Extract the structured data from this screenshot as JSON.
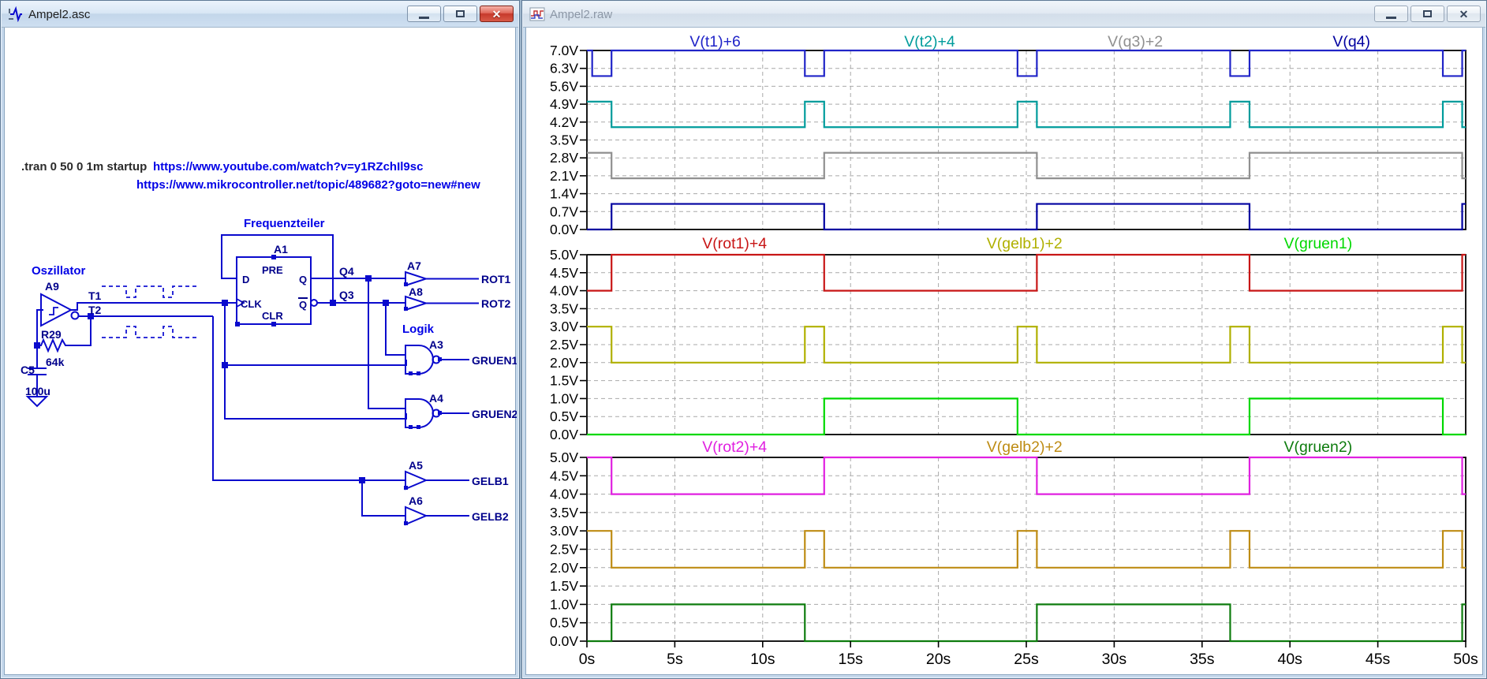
{
  "left_window": {
    "title": "Ampel2.asc",
    "controls": {
      "minimize": "minimize",
      "maximize": "maximize",
      "close": "close"
    },
    "directive": ".tran 0 50 0 1m startup",
    "links": {
      "youtube": "https://www.youtube.com/watch?v=y1RZchIl9sc",
      "forum": "https://www.mikrocontroller.net/topic/489682?goto=new#new"
    },
    "sections": {
      "oscillator": "Oszillator",
      "divider": "Frequenzteiler",
      "logic": "Logik"
    },
    "parts": {
      "a9": "A9",
      "r29": "R29",
      "r29_value": "64k",
      "c5": "C5",
      "c5_value": "100u",
      "a1": "A1",
      "a3": "A3",
      "a4": "A4",
      "a5": "A5",
      "a6": "A6",
      "a7": "A7",
      "a8": "A8"
    },
    "ff_pins": {
      "d": "D",
      "clk": "CLK",
      "pre": "PRE",
      "clr": "CLR",
      "q": "Q",
      "qbar": "Q"
    },
    "nets": {
      "t1": "T1",
      "t2": "T2",
      "q3": "Q3",
      "q4": "Q4",
      "rot1": "ROT1",
      "rot2": "ROT2",
      "gruen1": "GRUEN1",
      "gruen2": "GRUEN2",
      "gelb1": "GELB1",
      "gelb2": "GELB2"
    },
    "wire_color": "#0A0ACD",
    "label_color": "#00008B",
    "comment_color": "#0000E6"
  },
  "right_window": {
    "title": "Ampel2.raw",
    "controls": {
      "minimize": "minimize",
      "maximize": "maximize",
      "close": "close"
    }
  },
  "xtick_labels": [
    "0s",
    "5s",
    "10s",
    "15s",
    "20s",
    "25s",
    "30s",
    "35s",
    "40s",
    "45s",
    "50s"
  ],
  "chart_data": [
    {
      "type": "line",
      "step": true,
      "xlim": [
        0,
        50
      ],
      "ylim": [
        0,
        7
      ],
      "grid": true,
      "ytick_labels": [
        "7.0V",
        "6.3V",
        "5.6V",
        "4.9V",
        "4.2V",
        "3.5V",
        "2.8V",
        "2.1V",
        "1.4V",
        "0.7V",
        "0.0V"
      ],
      "series": [
        {
          "name": "V(t1)+6",
          "color": "#2024C8",
          "offset": 6,
          "label_pos_s": 7.3,
          "points": [
            [
              0,
              1
            ],
            [
              0.3,
              0
            ],
            [
              1.4,
              1
            ],
            [
              12.4,
              0
            ],
            [
              13.5,
              1
            ],
            [
              24.5,
              0
            ],
            [
              25.6,
              1
            ],
            [
              36.6,
              0
            ],
            [
              37.7,
              1
            ],
            [
              48.7,
              0
            ],
            [
              49.8,
              1
            ]
          ]
        },
        {
          "name": "V(t2)+4",
          "color": "#009C9C",
          "offset": 4,
          "label_pos_s": 19.5,
          "points": [
            [
              0,
              1
            ],
            [
              1.4,
              0
            ],
            [
              12.4,
              1
            ],
            [
              13.5,
              0
            ],
            [
              24.5,
              1
            ],
            [
              25.6,
              0
            ],
            [
              36.6,
              1
            ],
            [
              37.7,
              0
            ],
            [
              48.7,
              1
            ],
            [
              49.8,
              0
            ]
          ]
        },
        {
          "name": "V(q3)+2",
          "color": "#909090",
          "offset": 2,
          "label_pos_s": 31.2,
          "points": [
            [
              0,
              1
            ],
            [
              1.4,
              0
            ],
            [
              13.5,
              1
            ],
            [
              25.6,
              0
            ],
            [
              37.7,
              1
            ],
            [
              49.8,
              0
            ]
          ]
        },
        {
          "name": "V(q4)",
          "color": "#0000A0",
          "offset": 0,
          "label_pos_s": 43.5,
          "points": [
            [
              0,
              0
            ],
            [
              1.4,
              1
            ],
            [
              13.5,
              0
            ],
            [
              25.6,
              1
            ],
            [
              37.7,
              0
            ],
            [
              49.8,
              1
            ]
          ]
        }
      ]
    },
    {
      "type": "line",
      "step": true,
      "xlim": [
        0,
        50
      ],
      "ylim": [
        0,
        5
      ],
      "grid": true,
      "ytick_labels": [
        "5.0V",
        "4.5V",
        "4.0V",
        "3.5V",
        "3.0V",
        "2.5V",
        "2.0V",
        "1.5V",
        "1.0V",
        "0.5V",
        "0.0V"
      ],
      "series": [
        {
          "name": "V(rot1)+4",
          "color": "#C81616",
          "offset": 4,
          "label_pos_s": 8.4,
          "points": [
            [
              0,
              0
            ],
            [
              1.4,
              1
            ],
            [
              13.5,
              0
            ],
            [
              25.6,
              1
            ],
            [
              37.7,
              0
            ],
            [
              49.8,
              1
            ]
          ]
        },
        {
          "name": "V(gelb1)+2",
          "color": "#B0B000",
          "offset": 2,
          "label_pos_s": 24.9,
          "points": [
            [
              0,
              1
            ],
            [
              1.4,
              0
            ],
            [
              12.4,
              1
            ],
            [
              13.5,
              0
            ],
            [
              24.5,
              1
            ],
            [
              25.6,
              0
            ],
            [
              36.6,
              1
            ],
            [
              37.7,
              0
            ],
            [
              48.7,
              1
            ],
            [
              49.8,
              0
            ]
          ]
        },
        {
          "name": "V(gruen1)",
          "color": "#00D800",
          "offset": 0,
          "label_pos_s": 41.6,
          "points": [
            [
              0,
              0
            ],
            [
              13.5,
              1
            ],
            [
              24.5,
              0
            ],
            [
              37.7,
              1
            ],
            [
              48.7,
              0
            ]
          ]
        }
      ]
    },
    {
      "type": "line",
      "step": true,
      "xlim": [
        0,
        50
      ],
      "ylim": [
        0,
        5
      ],
      "grid": true,
      "ytick_labels": [
        "5.0V",
        "4.5V",
        "4.0V",
        "3.5V",
        "3.0V",
        "2.5V",
        "2.0V",
        "1.5V",
        "1.0V",
        "0.5V",
        "0.0V"
      ],
      "series": [
        {
          "name": "V(rot2)+4",
          "color": "#E020E0",
          "offset": 4,
          "label_pos_s": 8.4,
          "points": [
            [
              0,
              1
            ],
            [
              1.4,
              0
            ],
            [
              13.5,
              1
            ],
            [
              25.6,
              0
            ],
            [
              37.7,
              1
            ],
            [
              49.8,
              0
            ]
          ]
        },
        {
          "name": "V(gelb2)+2",
          "color": "#BE8C14",
          "offset": 2,
          "label_pos_s": 24.9,
          "points": [
            [
              0,
              1
            ],
            [
              1.4,
              0
            ],
            [
              12.4,
              1
            ],
            [
              13.5,
              0
            ],
            [
              24.5,
              1
            ],
            [
              25.6,
              0
            ],
            [
              36.6,
              1
            ],
            [
              37.7,
              0
            ],
            [
              48.7,
              1
            ],
            [
              49.8,
              0
            ]
          ]
        },
        {
          "name": "V(gruen2)",
          "color": "#0E7C0E",
          "offset": 0,
          "label_pos_s": 41.6,
          "points": [
            [
              0,
              0
            ],
            [
              1.4,
              1
            ],
            [
              12.4,
              0
            ],
            [
              25.6,
              1
            ],
            [
              36.6,
              0
            ],
            [
              49.8,
              1
            ]
          ]
        }
      ]
    }
  ]
}
